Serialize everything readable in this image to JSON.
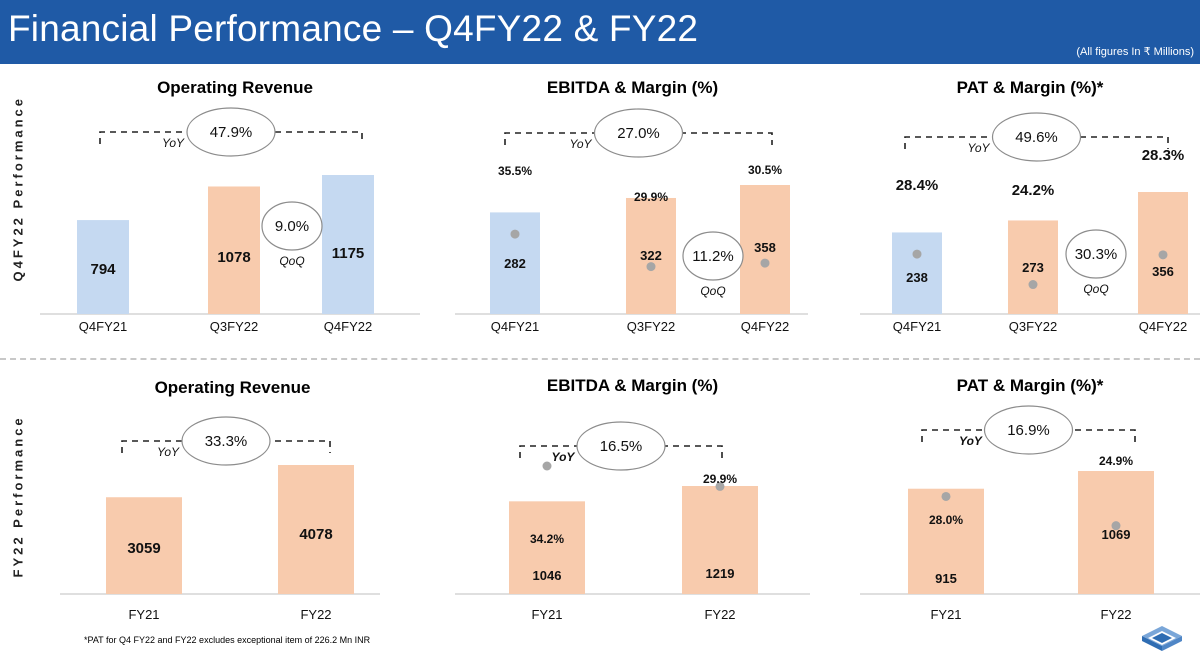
{
  "header": {
    "title": "Financial Performance – Q4FY22 & FY22",
    "note": "(All figures In ₹ Millions)"
  },
  "side_labels": {
    "top": "Q4FY22 Performance",
    "bottom": "FY22 Performance"
  },
  "footnote": "*PAT for Q4 FY22 and FY22 excludes exceptional item of 226.2 Mn INR",
  "colors": {
    "header_bg": "#1f5aa6",
    "bar_blue": "#c5d9f1",
    "bar_orange": "#f8cbad",
    "dot": "#a6a6a6"
  },
  "chart_data": [
    {
      "type": "bar",
      "panel": "top-left",
      "title": "Operating Revenue",
      "categories": [
        "Q4FY21",
        "Q3FY22",
        "Q4FY22"
      ],
      "values": [
        794,
        1078,
        1175
      ],
      "value_labels": [
        "794",
        "1078",
        "1175"
      ],
      "bar_colors": [
        "blue",
        "orange",
        "blue"
      ],
      "ylim": [
        0,
        1300
      ],
      "yoy": {
        "label": "YoY",
        "value": "47.9%"
      },
      "qoq": {
        "label": "QoQ",
        "value": "9.0%"
      }
    },
    {
      "type": "bar",
      "panel": "top-middle",
      "title": "EBITDA & Margin (%)",
      "categories": [
        "Q4FY21",
        "Q3FY22",
        "Q4FY22"
      ],
      "values": [
        282,
        322,
        358
      ],
      "value_labels": [
        "282",
        "322",
        "358"
      ],
      "bar_colors": [
        "blue",
        "orange",
        "orange"
      ],
      "ylim": [
        0,
        350
      ],
      "margin": {
        "values": [
          35.5,
          29.9,
          30.5
        ],
        "labels": [
          "35.5%",
          "29.9%",
          "30.5%"
        ],
        "ylim": [
          0,
          50
        ]
      },
      "yoy": {
        "label": "YoY",
        "value": "27.0%"
      },
      "qoq": {
        "label": "QoQ",
        "value": "11.2%"
      }
    },
    {
      "type": "bar",
      "panel": "top-right",
      "title": "PAT & Margin (%)*",
      "categories": [
        "Q4FY21",
        "Q3FY22",
        "Q4FY22"
      ],
      "values": [
        238,
        273,
        356
      ],
      "value_labels": [
        "238",
        "273",
        "356"
      ],
      "bar_colors": [
        "blue",
        "orange",
        "orange"
      ],
      "ylim": [
        0,
        450
      ],
      "margin": {
        "values": [
          28.4,
          24.2,
          28.3
        ],
        "labels": [
          "28.4%",
          "24.2%",
          "28.3%"
        ],
        "ylim": [
          0,
          40
        ]
      },
      "yoy": {
        "label": "YoY",
        "value": "49.6%"
      },
      "qoq": {
        "label": "QoQ",
        "value": "30.3%"
      }
    },
    {
      "type": "bar",
      "panel": "bottom-left",
      "title": "Operating Revenue",
      "categories": [
        "FY21",
        "FY22"
      ],
      "values": [
        3059,
        4078
      ],
      "value_labels": [
        "3059",
        "4078"
      ],
      "bar_colors": [
        "orange",
        "orange"
      ],
      "ylim": [
        0,
        4500
      ],
      "yoy": {
        "label": "YoY",
        "value": "33.3%"
      }
    },
    {
      "type": "bar",
      "panel": "bottom-middle",
      "title": "EBITDA & Margin (%)",
      "categories": [
        "FY21",
        "FY22"
      ],
      "values": [
        1046,
        1219
      ],
      "value_labels": [
        "1046",
        "1219"
      ],
      "bar_colors": [
        "orange",
        "orange"
      ],
      "ylim": [
        0,
        2700
      ],
      "margin": {
        "values": [
          34.2,
          29.9
        ],
        "labels": [
          "34.2%",
          "29.9%"
        ],
        "ylim": [
          0,
          42
        ]
      },
      "yoy": {
        "label": "YoY",
        "value": "16.5%"
      }
    },
    {
      "type": "bar",
      "panel": "bottom-right",
      "title": "PAT & Margin (%)*",
      "categories": [
        "FY21",
        "FY22"
      ],
      "values": [
        915,
        1069
      ],
      "value_labels": [
        "915",
        "1069"
      ],
      "bar_colors": [
        "orange",
        "orange"
      ],
      "ylim": [
        0,
        1950
      ],
      "margin": {
        "values": [
          28.0,
          24.9
        ],
        "labels": [
          "28.0%",
          "24.9%"
        ],
        "ylim": [
          0,
          34
        ]
      },
      "yoy": {
        "label": "YoY",
        "value": "16.9%"
      }
    }
  ]
}
